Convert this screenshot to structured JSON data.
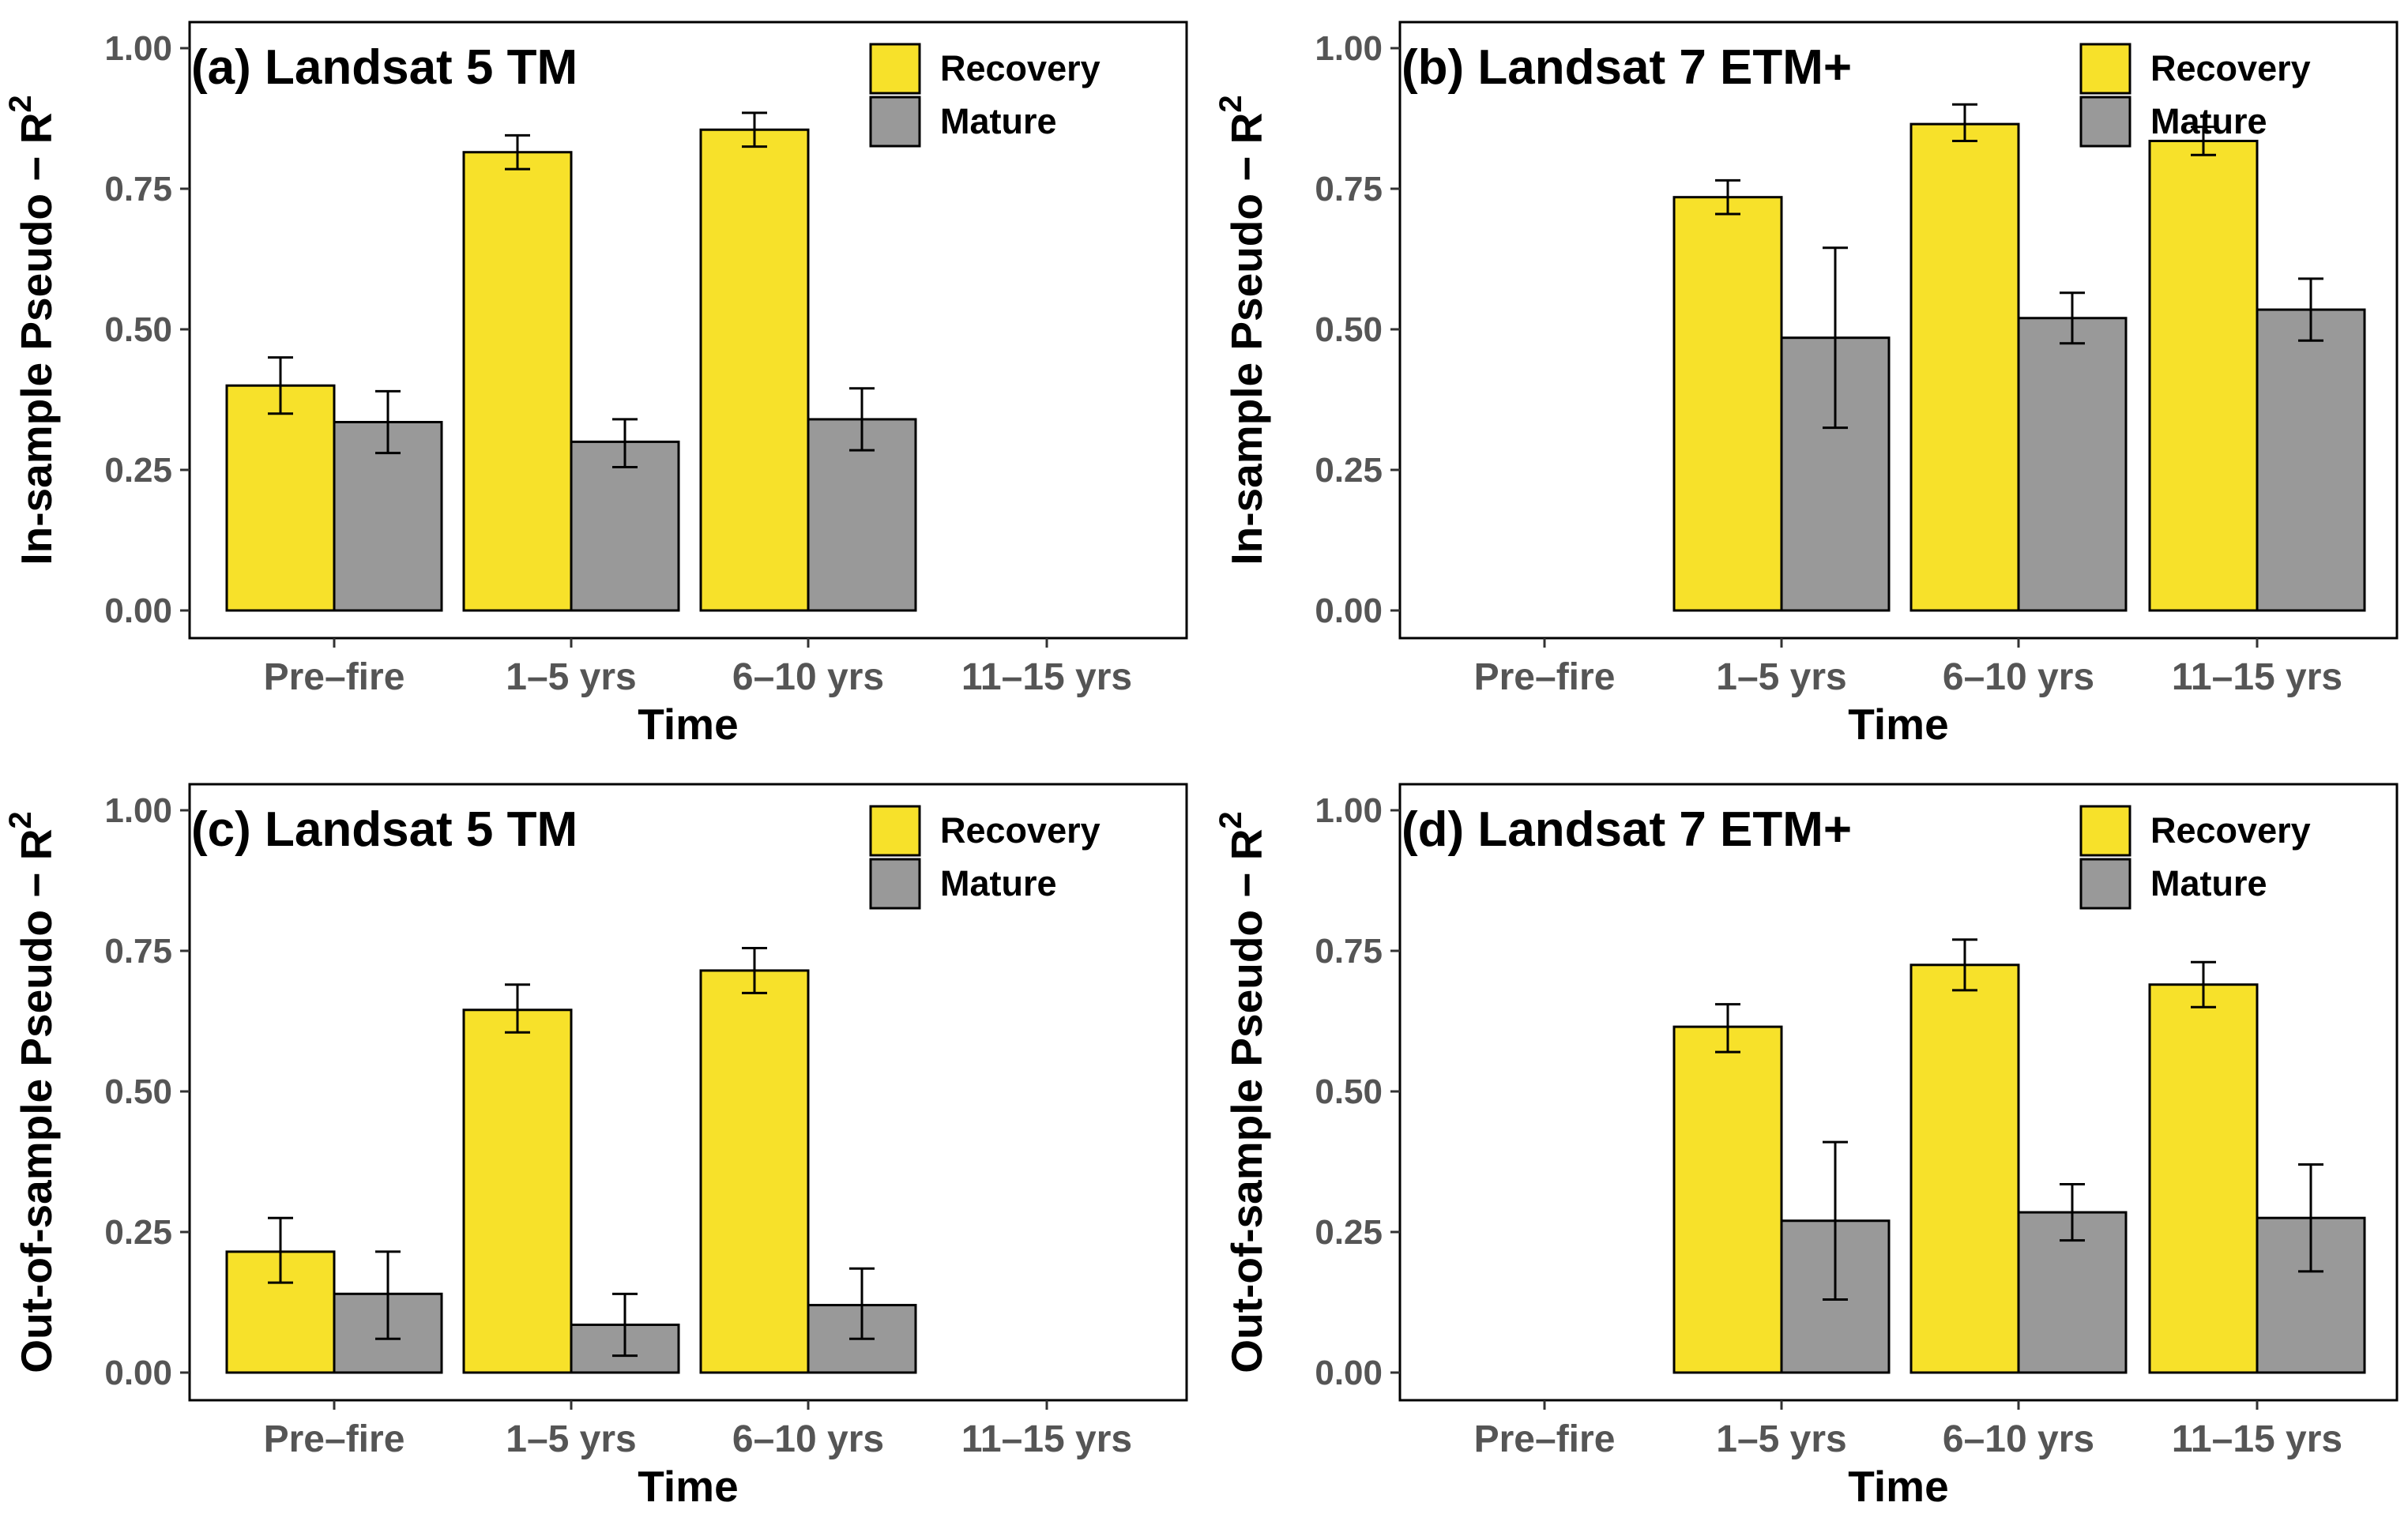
{
  "chart_data": [
    {
      "type": "bar",
      "title": "(a) Landsat 5 TM",
      "xlabel": "Time",
      "ylabel": "In-sample Pseudo − R",
      "ylabel_sup": "2",
      "ylim": [
        0,
        1
      ],
      "yticks": [
        "0.00",
        "0.25",
        "0.50",
        "0.75",
        "1.00"
      ],
      "grid": false,
      "legend": "top-right",
      "categories": [
        "Pre–fire",
        "1–5 yrs",
        "6–10 yrs",
        "11–15 yrs"
      ],
      "series": [
        {
          "name": "Recovery",
          "color": "#F7E12A",
          "values": [
            0.4,
            0.815,
            0.855,
            null
          ],
          "err_low": [
            0.35,
            0.785,
            0.825,
            null
          ],
          "err_high": [
            0.45,
            0.845,
            0.885,
            null
          ]
        },
        {
          "name": "Mature",
          "color": "#999999",
          "values": [
            0.335,
            0.3,
            0.34,
            null
          ],
          "err_low": [
            0.28,
            0.255,
            0.285,
            null
          ],
          "err_high": [
            0.39,
            0.34,
            0.395,
            null
          ]
        }
      ]
    },
    {
      "type": "bar",
      "title": "(b) Landsat 7 ETM+",
      "xlabel": "Time",
      "ylabel": "In-sample Pseudo − R",
      "ylabel_sup": "2",
      "ylim": [
        0,
        1
      ],
      "yticks": [
        "0.00",
        "0.25",
        "0.50",
        "0.75",
        "1.00"
      ],
      "grid": false,
      "legend": "top-right",
      "categories": [
        "Pre–fire",
        "1–5 yrs",
        "6–10 yrs",
        "11–15 yrs"
      ],
      "series": [
        {
          "name": "Recovery",
          "color": "#F7E12A",
          "values": [
            null,
            0.735,
            0.865,
            0.835
          ],
          "err_low": [
            null,
            0.705,
            0.835,
            0.81
          ],
          "err_high": [
            null,
            0.765,
            0.9,
            0.86
          ]
        },
        {
          "name": "Mature",
          "color": "#999999",
          "values": [
            null,
            0.485,
            0.52,
            0.535
          ],
          "err_low": [
            null,
            0.325,
            0.475,
            0.48
          ],
          "err_high": [
            null,
            0.645,
            0.565,
            0.59
          ]
        }
      ]
    },
    {
      "type": "bar",
      "title": "(c) Landsat 5 TM",
      "xlabel": "Time",
      "ylabel": "Out-of-sample Pseudo − R",
      "ylabel_sup": "2",
      "ylim": [
        0,
        1
      ],
      "yticks": [
        "0.00",
        "0.25",
        "0.50",
        "0.75",
        "1.00"
      ],
      "grid": false,
      "legend": "top-right",
      "categories": [
        "Pre–fire",
        "1–5 yrs",
        "6–10 yrs",
        "11–15 yrs"
      ],
      "series": [
        {
          "name": "Recovery",
          "color": "#F7E12A",
          "values": [
            0.215,
            0.645,
            0.715,
            null
          ],
          "err_low": [
            0.16,
            0.605,
            0.675,
            null
          ],
          "err_high": [
            0.275,
            0.69,
            0.755,
            null
          ]
        },
        {
          "name": "Mature",
          "color": "#999999",
          "values": [
            0.14,
            0.085,
            0.12,
            null
          ],
          "err_low": [
            0.06,
            0.03,
            0.06,
            null
          ],
          "err_high": [
            0.215,
            0.14,
            0.185,
            null
          ]
        }
      ]
    },
    {
      "type": "bar",
      "title": "(d) Landsat 7 ETM+",
      "xlabel": "Time",
      "ylabel": "Out-of-sample Pseudo − R",
      "ylabel_sup": "2",
      "ylim": [
        0,
        1
      ],
      "yticks": [
        "0.00",
        "0.25",
        "0.50",
        "0.75",
        "1.00"
      ],
      "grid": false,
      "legend": "top-right",
      "categories": [
        "Pre–fire",
        "1–5 yrs",
        "6–10 yrs",
        "11–15 yrs"
      ],
      "series": [
        {
          "name": "Recovery",
          "color": "#F7E12A",
          "values": [
            null,
            0.615,
            0.725,
            0.69
          ],
          "err_low": [
            null,
            0.57,
            0.68,
            0.65
          ],
          "err_high": [
            null,
            0.655,
            0.77,
            0.73
          ]
        },
        {
          "name": "Mature",
          "color": "#999999",
          "values": [
            null,
            0.27,
            0.285,
            0.275
          ],
          "err_low": [
            null,
            0.13,
            0.235,
            0.18
          ],
          "err_high": [
            null,
            0.41,
            0.335,
            0.37
          ]
        }
      ]
    }
  ]
}
